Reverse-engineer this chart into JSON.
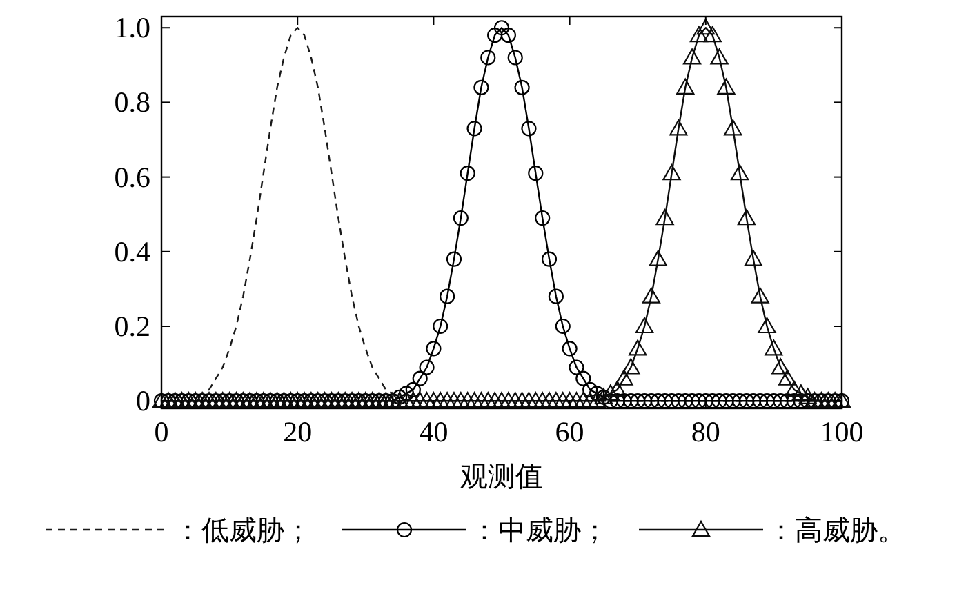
{
  "chart_data": {
    "type": "line",
    "xlabel": "观测值",
    "x": [
      0,
      1,
      2,
      3,
      4,
      5,
      6,
      7,
      8,
      9,
      10,
      11,
      12,
      13,
      14,
      15,
      16,
      17,
      18,
      19,
      20,
      21,
      22,
      23,
      24,
      25,
      26,
      27,
      28,
      29,
      30,
      31,
      32,
      33,
      34,
      35,
      36,
      37,
      38,
      39,
      40,
      41,
      42,
      43,
      44,
      45,
      46,
      47,
      48,
      49,
      50,
      51,
      52,
      53,
      54,
      55,
      56,
      57,
      58,
      59,
      60,
      61,
      62,
      63,
      64,
      65,
      66,
      67,
      68,
      69,
      70,
      71,
      72,
      73,
      74,
      75,
      76,
      77,
      78,
      79,
      80,
      81,
      82,
      83,
      84,
      85,
      86,
      87,
      88,
      89,
      90,
      91,
      92,
      93,
      94,
      95,
      96,
      97,
      98,
      99,
      100
    ],
    "series": [
      {
        "name": "：低威胁；",
        "color": "#1a1a1a",
        "marker": "none",
        "line_style": "dashed",
        "values": [
          0,
          0,
          0,
          0,
          0,
          0.01,
          0.02,
          0.03,
          0.06,
          0.09,
          0.14,
          0.2,
          0.28,
          0.38,
          0.49,
          0.61,
          0.73,
          0.84,
          0.92,
          0.98,
          1,
          0.98,
          0.92,
          0.84,
          0.73,
          0.61,
          0.49,
          0.38,
          0.28,
          0.2,
          0.14,
          0.09,
          0.06,
          0.03,
          0.02,
          0.01,
          0,
          0,
          0,
          0,
          0,
          0,
          0,
          0,
          0,
          0,
          0,
          0,
          0,
          0,
          0,
          0,
          0,
          0,
          0,
          0,
          0,
          0,
          0,
          0,
          0,
          0,
          0,
          0,
          0,
          0,
          0,
          0,
          0,
          0,
          0,
          0,
          0,
          0,
          0,
          0,
          0,
          0,
          0,
          0,
          0,
          0,
          0,
          0,
          0,
          0,
          0,
          0,
          0,
          0,
          0,
          0,
          0,
          0,
          0,
          0,
          0,
          0,
          0,
          0,
          0
        ]
      },
      {
        "name": "：中威胁；",
        "color": "#000000",
        "marker": "circle",
        "line_style": "solid",
        "values": [
          0,
          0,
          0,
          0,
          0,
          0,
          0,
          0,
          0,
          0,
          0,
          0,
          0,
          0,
          0,
          0,
          0,
          0,
          0,
          0,
          0,
          0,
          0,
          0,
          0,
          0,
          0,
          0,
          0,
          0,
          0,
          0,
          0,
          0,
          0,
          0.01,
          0.02,
          0.03,
          0.06,
          0.09,
          0.14,
          0.2,
          0.28,
          0.38,
          0.49,
          0.61,
          0.73,
          0.84,
          0.92,
          0.98,
          1,
          0.98,
          0.92,
          0.84,
          0.73,
          0.61,
          0.49,
          0.38,
          0.28,
          0.2,
          0.14,
          0.09,
          0.06,
          0.03,
          0.02,
          0.01,
          0,
          0,
          0,
          0,
          0,
          0,
          0,
          0,
          0,
          0,
          0,
          0,
          0,
          0,
          0,
          0,
          0,
          0,
          0,
          0,
          0,
          0,
          0,
          0,
          0,
          0,
          0,
          0,
          0,
          0,
          0,
          0,
          0,
          0,
          0
        ]
      },
      {
        "name": "：高威胁。",
        "color": "#0d0d0d",
        "marker": "triangle",
        "line_style": "solid",
        "values": [
          0,
          0,
          0,
          0,
          0,
          0,
          0,
          0,
          0,
          0,
          0,
          0,
          0,
          0,
          0,
          0,
          0,
          0,
          0,
          0,
          0,
          0,
          0,
          0,
          0,
          0,
          0,
          0,
          0,
          0,
          0,
          0,
          0,
          0,
          0,
          0,
          0,
          0,
          0,
          0,
          0,
          0,
          0,
          0,
          0,
          0,
          0,
          0,
          0,
          0,
          0,
          0,
          0,
          0,
          0,
          0,
          0,
          0,
          0,
          0,
          0,
          0,
          0,
          0,
          0,
          0.01,
          0.02,
          0.03,
          0.06,
          0.09,
          0.14,
          0.2,
          0.28,
          0.38,
          0.49,
          0.61,
          0.73,
          0.84,
          0.92,
          0.98,
          1,
          0.98,
          0.92,
          0.84,
          0.73,
          0.61,
          0.49,
          0.38,
          0.28,
          0.2,
          0.14,
          0.09,
          0.06,
          0.03,
          0.02,
          0.01,
          0,
          0,
          0,
          0,
          0
        ]
      }
    ],
    "xlim": [
      0,
      100
    ],
    "xticks": [
      0,
      20,
      40,
      60,
      80,
      100
    ],
    "ylim": [
      -0.02,
      1.03
    ],
    "yticks": [
      0,
      {
        "value": 0.2,
        "label": "0.2"
      },
      {
        "value": 0.4,
        "label": "0.4"
      },
      {
        "value": 0.6,
        "label": "0.6"
      },
      {
        "value": 0.8,
        "label": "0.8"
      },
      {
        "value": 1,
        "label": "1.0"
      }
    ],
    "grid": false,
    "legend": "bottom"
  }
}
